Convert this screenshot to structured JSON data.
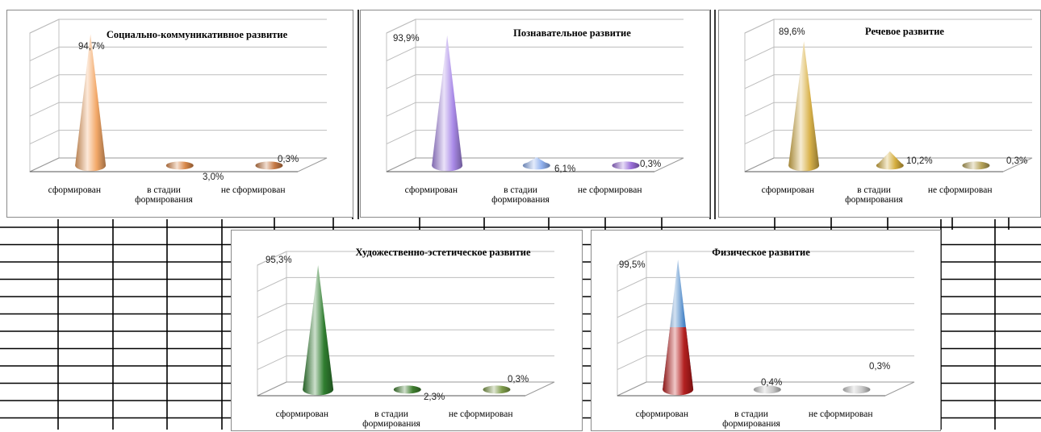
{
  "chart_data": [
    {
      "type": "bar",
      "title": "Социально-коммуникативное развитие",
      "categories": [
        "сформирован",
        "в стадии формирования",
        "не сформирован"
      ],
      "category_labels": [
        [
          "сформирован"
        ],
        [
          "в стадии",
          "формирования"
        ],
        [
          "не сформирован"
        ]
      ],
      "values": [
        94.7,
        3.0,
        0.3
      ],
      "value_labels": [
        "94,7%",
        "3,0%",
        "0,3%"
      ],
      "ylim": [
        0,
        100
      ],
      "grid": true,
      "shape": "cone",
      "colors": [
        "#f3a868",
        "#d9884a",
        "#c77a45"
      ]
    },
    {
      "type": "bar",
      "title": "Познавательное развитие",
      "categories": [
        "сформирован",
        "в стадии формирования",
        "не сформирован"
      ],
      "category_labels": [
        [
          "сформирован"
        ],
        [
          "в стадии",
          "формирования"
        ],
        [
          "не сформирован"
        ]
      ],
      "values": [
        93.9,
        6.1,
        0.3
      ],
      "value_labels": [
        "93,9%",
        "6,1%",
        "0,3%"
      ],
      "ylim": [
        0,
        100
      ],
      "grid": true,
      "shape": "cone",
      "colors": [
        "#a98ae8",
        "#8fb0ee",
        "#9a6fd9"
      ]
    },
    {
      "type": "bar",
      "title": "Речевое развитие",
      "categories": [
        "сформирован",
        "в стадии формирования",
        "не сформирован"
      ],
      "category_labels": [
        [
          "сформирован"
        ],
        [
          "в стадии",
          "формирования"
        ],
        [
          "не сформирован"
        ]
      ],
      "values": [
        89.6,
        10.2,
        0.3
      ],
      "value_labels": [
        "89,6%",
        "10,2%",
        "0,3%"
      ],
      "ylim": [
        0,
        100
      ],
      "grid": true,
      "shape": "cone",
      "colors": [
        "#d9b24a",
        "#d4ad3e",
        "#b7a45a"
      ]
    },
    {
      "type": "bar",
      "title": "Художественно-эстетическое развитие",
      "categories": [
        "сформирован",
        "в стадии формирования",
        "не сформирован"
      ],
      "category_labels": [
        [
          "сформирован"
        ],
        [
          "в стадии",
          "формирования"
        ],
        [
          "не сформирован"
        ]
      ],
      "values": [
        95.3,
        2.3,
        0.3
      ],
      "value_labels": [
        "95,3%",
        "2,3%",
        "0,3%"
      ],
      "ylim": [
        0,
        100
      ],
      "grid": true,
      "shape": "cone",
      "colors": [
        "#2f7d2f",
        "#3f7f2f",
        "#7e9c4a"
      ]
    },
    {
      "type": "bar",
      "title": "Физическое развитие",
      "categories": [
        "сформирован",
        "в стадии формирования",
        "не сформирован"
      ],
      "category_labels": [
        [
          "сформирован"
        ],
        [
          "в стадии",
          "формирования"
        ],
        [
          "не сформирован"
        ]
      ],
      "values": [
        99.5,
        0.4,
        0.3
      ],
      "value_labels": [
        "99,5%",
        "0,4%",
        "0,3%"
      ],
      "ylim": [
        0,
        100
      ],
      "grid": true,
      "shape": "cone",
      "colors": [
        "#4a86c8",
        "#c8c8c8",
        "#c8c8c8"
      ]
    }
  ]
}
